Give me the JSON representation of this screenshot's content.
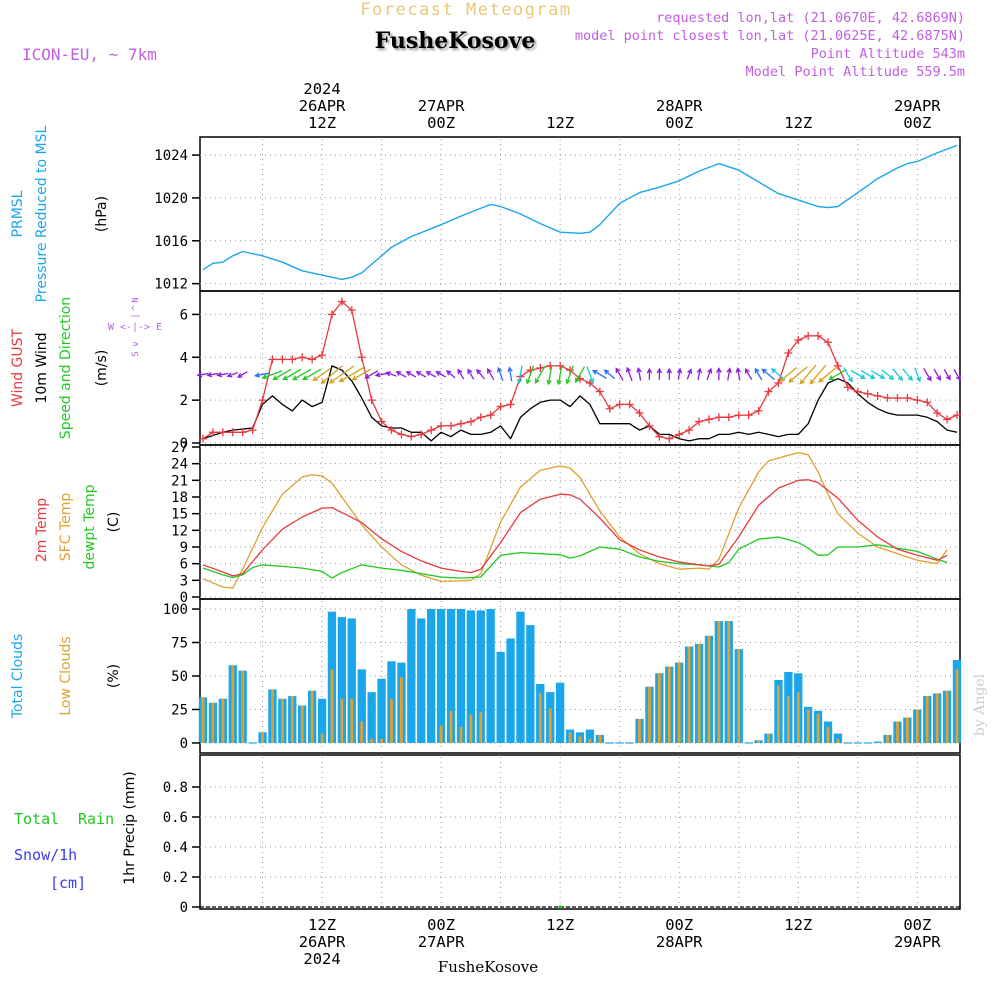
{
  "header": {
    "product_title": "Forecast Meteogram",
    "location": "FusheKosove",
    "model": "ICON-EU, ~ 7km",
    "requested": "requested lon,lat (21.0670E, 42.6869N)",
    "closest": "model point closest lon,lat (21.0625E, 42.6875N)",
    "point_altitude": "Point Altitude 543m",
    "model_altitude": "Model Point Altitude 559.5m",
    "footer_location": "FusheKosove",
    "credit": "by Angel"
  },
  "colors": {
    "pressure": "#1aa6ea",
    "gust": "#e8393f",
    "wind": "#000000",
    "arrow_purple": "#8a1ee0",
    "arrow_green": "#22c822",
    "arrow_cyan": "#18c8d8",
    "arrow_blue": "#2a6ef0",
    "arrow_gold": "#d4a020",
    "temp": "#e8393f",
    "sfc": "#e0a030",
    "dew": "#22c822",
    "total_clouds": "#1aa6ea",
    "low_clouds": "#e0a030",
    "rain": "#22c822",
    "snow": "#3a3af0",
    "title_gold": "#e0b040",
    "meta_purple": "#c060e0"
  },
  "time_axis": {
    "top_labels": [
      {
        "lines": [
          "2024",
          "26APR",
          "12Z"
        ],
        "hour": 12
      },
      {
        "lines": [
          "27APR",
          "00Z"
        ],
        "hour": 24
      },
      {
        "lines": [
          "12Z"
        ],
        "hour": 36
      },
      {
        "lines": [
          "28APR",
          "00Z"
        ],
        "hour": 48
      },
      {
        "lines": [
          "12Z"
        ],
        "hour": 60
      },
      {
        "lines": [
          "29APR",
          "00Z"
        ],
        "hour": 72
      }
    ],
    "bottom_labels": [
      {
        "lines": [
          "12Z",
          "26APR",
          "2024"
        ],
        "hour": 12
      },
      {
        "lines": [
          "00Z",
          "27APR"
        ],
        "hour": 24
      },
      {
        "lines": [
          "12Z"
        ],
        "hour": 36
      },
      {
        "lines": [
          "00Z",
          "28APR"
        ],
        "hour": 48
      },
      {
        "lines": [
          "12Z"
        ],
        "hour": 60
      },
      {
        "lines": [
          "00Z",
          "29APR"
        ],
        "hour": 72
      }
    ],
    "start_hour": 0,
    "end_hour": 76,
    "step_hours": 1
  },
  "panels": {
    "pressure": {
      "label_lines": [
        "PRMSL",
        "Pressure Reduced to MSL"
      ],
      "unit": "(hPa)",
      "ylim": [
        1011.5,
        1025.5
      ],
      "ticks": [
        1012,
        1016,
        1020,
        1024
      ]
    },
    "wind": {
      "label_gust": "Wind GUST",
      "label_wind": "10m Wind",
      "label_dir": "Speed and Direction",
      "unit": "(m/s)",
      "compass_ns": [
        "N",
        "^",
        "|",
        "v",
        "S"
      ],
      "compass_we": "W <-|-> E",
      "ylim": [
        0,
        7
      ],
      "ticks": [
        0,
        2,
        4,
        6
      ]
    },
    "temperature": {
      "label_temp": "2m Temp",
      "label_sfc": "SFC Temp",
      "label_dew": "dewpt Temp",
      "unit": "(C)",
      "ylim": [
        0,
        27
      ],
      "ticks": [
        0,
        3,
        6,
        9,
        12,
        15,
        18,
        21,
        24,
        27
      ]
    },
    "clouds": {
      "label_total": "Total Clouds",
      "label_low": "Low Clouds",
      "unit": "(%)",
      "ylim": [
        -6,
        106
      ],
      "ticks": [
        0,
        25,
        50,
        75,
        100
      ]
    },
    "precip": {
      "label_rain_a": "Total",
      "label_rain_b": "Rain",
      "label_snow_a": "Snow/1h",
      "label_snow_b": "[cm]",
      "unit": "1hr Precip (mm)",
      "ylim": [
        0,
        1
      ],
      "ticks": [
        0,
        0.2,
        0.4,
        0.6,
        0.8
      ],
      "tick_labels": [
        "0",
        "0.2",
        "0.4",
        "0.6",
        "0.8"
      ]
    }
  },
  "chart_data": {
    "type": "line",
    "title": "Forecast Meteogram FusheKosove",
    "x_units": "hours since 26APR 00Z",
    "pressure": {
      "x": [
        0,
        1,
        2,
        3,
        4,
        6,
        8,
        10,
        12,
        14,
        15,
        16,
        18,
        19,
        21,
        24,
        26,
        29,
        30,
        32,
        34,
        36,
        38,
        39,
        40,
        42,
        44,
        46,
        48,
        50,
        52,
        54,
        56,
        58,
        60,
        62,
        63,
        64,
        66,
        68,
        70,
        71,
        72,
        74,
        76
      ],
      "values": [
        1013.3,
        1013.9,
        1014.0,
        1014.6,
        1015.0,
        1014.6,
        1014.0,
        1013.2,
        1012.8,
        1012.4,
        1012.6,
        1013.0,
        1014.6,
        1015.4,
        1016.4,
        1017.5,
        1018.3,
        1019.4,
        1019.2,
        1018.5,
        1017.6,
        1016.8,
        1016.7,
        1016.8,
        1017.5,
        1019.5,
        1020.5,
        1021.0,
        1021.6,
        1022.5,
        1023.2,
        1022.6,
        1021.5,
        1020.4,
        1019.8,
        1019.2,
        1019.1,
        1019.2,
        1020.5,
        1021.8,
        1022.8,
        1023.2,
        1023.4,
        1024.2,
        1024.9
      ]
    },
    "wind_speed": {
      "x": [
        0,
        2,
        3,
        5,
        6,
        7,
        8,
        9,
        10,
        11,
        12,
        13,
        14,
        15,
        16,
        17,
        18,
        19,
        20,
        21,
        22,
        23,
        24,
        25,
        26,
        27,
        28,
        29,
        30,
        31,
        32,
        33,
        34,
        35,
        36,
        37,
        38,
        39,
        40,
        41,
        42,
        43,
        44,
        45,
        46,
        47,
        48,
        49,
        50,
        51,
        52,
        53,
        54,
        55,
        56,
        57,
        58,
        59,
        60,
        61,
        62,
        63,
        64,
        65,
        66,
        67,
        68,
        69,
        70,
        71,
        72,
        73,
        74,
        75,
        76
      ],
      "values": [
        0.2,
        0.5,
        0.6,
        0.7,
        1.8,
        2.2,
        1.8,
        1.5,
        2.0,
        1.7,
        1.9,
        3.6,
        3.4,
        2.9,
        2.1,
        1.2,
        0.8,
        0.7,
        0.7,
        0.5,
        0.5,
        0.1,
        0.5,
        0.3,
        0.6,
        0.4,
        0.4,
        0.5,
        0.8,
        0.2,
        1.2,
        1.6,
        1.9,
        2.0,
        2.0,
        1.7,
        2.2,
        1.8,
        0.9,
        0.9,
        0.9,
        0.9,
        0.6,
        0.8,
        0.4,
        0.4,
        0.2,
        0.1,
        0.2,
        0.2,
        0.4,
        0.4,
        0.5,
        0.4,
        0.5,
        0.4,
        0.3,
        0.4,
        0.4,
        0.9,
        2.0,
        2.8,
        3.0,
        2.8,
        2.3,
        1.9,
        1.6,
        1.4,
        1.3,
        1.3,
        1.3,
        1.2,
        1.0,
        0.6,
        0.5
      ]
    },
    "wind_gust": {
      "x": [
        0,
        1,
        2,
        3,
        4,
        5,
        6,
        7,
        8,
        9,
        10,
        11,
        12,
        13,
        14,
        15,
        16,
        17,
        18,
        19,
        20,
        21,
        22,
        23,
        24,
        25,
        26,
        27,
        28,
        29,
        30,
        31,
        32,
        33,
        34,
        35,
        36,
        37,
        38,
        39,
        40,
        41,
        42,
        43,
        44,
        45,
        46,
        47,
        48,
        49,
        50,
        51,
        52,
        53,
        54,
        55,
        56,
        57,
        58,
        59,
        60,
        61,
        62,
        63,
        64,
        65,
        66,
        67,
        68,
        69,
        70,
        71,
        72,
        73,
        74,
        75,
        76
      ],
      "values": [
        0.2,
        0.5,
        0.5,
        0.5,
        0.5,
        0.6,
        2.0,
        3.9,
        3.9,
        3.9,
        4.0,
        3.9,
        4.1,
        6.0,
        6.6,
        6.2,
        4.0,
        2.0,
        1.0,
        0.6,
        0.4,
        0.3,
        0.4,
        0.6,
        0.8,
        0.8,
        0.9,
        1.0,
        1.2,
        1.3,
        1.7,
        1.8,
        3.1,
        3.4,
        3.5,
        3.6,
        3.6,
        3.4,
        3.0,
        2.8,
        2.4,
        1.6,
        1.8,
        1.8,
        1.4,
        0.8,
        0.3,
        0.2,
        0.4,
        0.6,
        1.0,
        1.1,
        1.2,
        1.2,
        1.3,
        1.3,
        1.5,
        2.4,
        2.8,
        4.2,
        4.8,
        5.0,
        5.0,
        4.7,
        3.6,
        2.6,
        2.4,
        2.3,
        2.2,
        2.1,
        2.1,
        2.1,
        2.0,
        1.9,
        1.4,
        1.1,
        1.3
      ]
    },
    "wind_arrows": {
      "x": [
        0,
        1,
        2,
        3,
        4,
        6,
        7,
        8,
        9,
        10,
        11,
        12,
        13,
        14,
        15,
        16,
        17,
        18,
        19,
        20,
        21,
        22,
        23,
        24,
        25,
        26,
        27,
        28,
        29,
        30,
        31,
        32,
        33,
        34,
        35,
        36,
        37,
        38,
        39,
        40,
        41,
        42,
        43,
        44,
        45,
        46,
        47,
        48,
        49,
        50,
        51,
        52,
        53,
        54,
        55,
        56,
        57,
        58,
        59,
        60,
        61,
        62,
        63,
        64,
        65,
        66,
        67,
        68,
        69,
        70,
        71,
        72,
        73,
        74,
        75,
        76
      ],
      "dir_deg": [
        80,
        80,
        80,
        70,
        60,
        80,
        70,
        60,
        60,
        60,
        60,
        55,
        50,
        55,
        60,
        60,
        60,
        80,
        110,
        120,
        120,
        120,
        120,
        120,
        130,
        150,
        150,
        140,
        150,
        160,
        170,
        10,
        20,
        30,
        10,
        10,
        20,
        30,
        340,
        120,
        130,
        150,
        160,
        170,
        180,
        180,
        180,
        190,
        200,
        190,
        200,
        180,
        190,
        170,
        150,
        150,
        130,
        130,
        50,
        50,
        40,
        40,
        50,
        60,
        330,
        300,
        300,
        300,
        310,
        320,
        320,
        340,
        330,
        330,
        330,
        330
      ],
      "color": [
        "purple",
        "purple",
        "purple",
        "purple",
        "purple",
        "blue",
        "green",
        "green",
        "green",
        "green",
        "green",
        "gold",
        "gold",
        "gold",
        "gold",
        "gold",
        "purple",
        "purple",
        "purple",
        "purple",
        "purple",
        "purple",
        "purple",
        "purple",
        "purple",
        "purple",
        "purple",
        "purple",
        "purple",
        "blue",
        "blue",
        "cyan",
        "green",
        "green",
        "green",
        "green",
        "green",
        "green",
        "cyan",
        "blue",
        "blue",
        "purple",
        "purple",
        "purple",
        "purple",
        "purple",
        "purple",
        "purple",
        "purple",
        "purple",
        "purple",
        "purple",
        "purple",
        "purple",
        "purple",
        "blue",
        "blue",
        "cyan",
        "gold",
        "gold",
        "gold",
        "gold",
        "gold",
        "green",
        "cyan",
        "cyan",
        "cyan",
        "cyan",
        "cyan",
        "cyan",
        "cyan",
        "cyan",
        "purple",
        "purple",
        "purple",
        "purple"
      ]
    },
    "temp_2m": {
      "x": [
        0,
        2,
        3,
        4,
        6,
        8,
        10,
        12,
        13,
        14,
        16,
        18,
        20,
        22,
        24,
        26,
        27,
        28,
        30,
        32,
        34,
        36,
        37,
        38,
        40,
        42,
        44,
        46,
        48,
        50,
        51,
        52,
        54,
        56,
        58,
        60,
        61,
        62,
        64,
        66,
        68,
        70,
        72,
        74,
        75
      ],
      "values": [
        5.8,
        4.5,
        3.8,
        4.2,
        8.5,
        12.2,
        14.4,
        16.0,
        16.1,
        15.2,
        13.4,
        10.5,
        8.2,
        6.5,
        5.2,
        4.6,
        4.4,
        5.0,
        9.8,
        15.2,
        17.6,
        18.5,
        18.4,
        17.6,
        14.2,
        10.3,
        8.5,
        7.2,
        6.3,
        5.8,
        5.6,
        5.9,
        10.8,
        16.5,
        19.6,
        21.0,
        21.1,
        20.6,
        17.8,
        13.8,
        10.8,
        8.6,
        7.5,
        6.6,
        7.5
      ]
    },
    "temp_sfc": {
      "x": [
        0,
        2,
        3,
        4,
        6,
        8,
        10,
        11,
        12,
        13,
        14,
        16,
        18,
        20,
        22,
        24,
        26,
        27,
        28,
        30,
        32,
        34,
        35,
        36,
        37,
        38,
        40,
        42,
        44,
        46,
        48,
        50,
        51,
        52,
        54,
        56,
        57,
        58,
        59,
        60,
        61,
        62,
        63,
        64,
        66,
        68,
        70,
        72,
        74,
        75
      ],
      "values": [
        3.3,
        1.8,
        1.6,
        5.0,
        12.5,
        18.5,
        21.6,
        22.0,
        21.8,
        20.5,
        18.0,
        13.0,
        9.0,
        5.8,
        3.9,
        2.8,
        2.9,
        3.0,
        4.2,
        13.5,
        19.8,
        22.8,
        23.2,
        23.6,
        23.2,
        21.5,
        15.5,
        10.8,
        7.8,
        6.0,
        5.0,
        5.2,
        5.0,
        6.8,
        16.0,
        22.5,
        24.5,
        25.0,
        25.5,
        26.0,
        25.6,
        22.5,
        18.5,
        15.0,
        11.5,
        9.0,
        7.8,
        6.6,
        6.0,
        8.5
      ]
    },
    "dewpoint": {
      "x": [
        0,
        2,
        3,
        4,
        5,
        6,
        8,
        10,
        12,
        13,
        14,
        16,
        18,
        20,
        22,
        24,
        26,
        28,
        30,
        32,
        34,
        36,
        37,
        38,
        40,
        42,
        44,
        46,
        48,
        50,
        52,
        53,
        54,
        56,
        58,
        60,
        61,
        62,
        63,
        64,
        66,
        68,
        70,
        72,
        74,
        75
      ],
      "values": [
        5.2,
        4.0,
        3.5,
        4.0,
        5.3,
        5.8,
        5.5,
        5.2,
        4.6,
        3.4,
        4.4,
        5.8,
        5.2,
        4.8,
        4.2,
        3.6,
        3.4,
        3.6,
        7.5,
        8.0,
        7.8,
        7.6,
        7.0,
        7.4,
        9.0,
        8.6,
        7.2,
        6.4,
        6.0,
        5.8,
        5.4,
        6.2,
        8.6,
        10.4,
        10.8,
        9.8,
        8.8,
        7.5,
        7.6,
        9.0,
        9.0,
        9.4,
        8.8,
        8.2,
        6.8,
        6.2
      ]
    },
    "clouds": {
      "x": [
        0,
        1,
        2,
        3,
        4,
        5,
        6,
        7,
        8,
        9,
        10,
        11,
        12,
        13,
        14,
        15,
        16,
        17,
        18,
        19,
        20,
        21,
        22,
        23,
        24,
        25,
        26,
        27,
        28,
        29,
        30,
        31,
        32,
        33,
        34,
        35,
        36,
        37,
        38,
        39,
        40,
        41,
        42,
        43,
        44,
        45,
        46,
        47,
        48,
        49,
        50,
        51,
        52,
        53,
        54,
        55,
        56,
        57,
        58,
        59,
        60,
        61,
        62,
        63,
        64,
        65,
        66,
        67,
        68,
        69,
        70,
        71,
        72,
        73,
        74,
        75,
        76
      ],
      "total": [
        34,
        30,
        33,
        58,
        54,
        0,
        8,
        40,
        33,
        35,
        28,
        39,
        33,
        98,
        94,
        93,
        55,
        38,
        48,
        61,
        60,
        100,
        93,
        100,
        100,
        100,
        100,
        99,
        99,
        100,
        68,
        78,
        98,
        88,
        44,
        38,
        45,
        10,
        8,
        10,
        6,
        0,
        0,
        0,
        18,
        42,
        52,
        57,
        60,
        72,
        74,
        80,
        91,
        91,
        70,
        0,
        2,
        7,
        47,
        53,
        52,
        27,
        24,
        16,
        7,
        0,
        0,
        0,
        1,
        6,
        16,
        19,
        25,
        35,
        37,
        39,
        62
      ],
      "low": [
        34,
        30,
        33,
        58,
        54,
        0,
        8,
        40,
        33,
        35,
        28,
        39,
        7,
        55,
        33,
        33,
        16,
        3,
        3,
        33,
        49,
        0,
        0,
        0,
        13,
        24,
        12,
        21,
        23,
        0,
        0,
        0,
        0,
        0,
        37,
        26,
        0,
        8,
        5,
        3,
        6,
        0,
        0,
        0,
        18,
        42,
        52,
        57,
        60,
        72,
        74,
        80,
        91,
        91,
        70,
        0,
        2,
        7,
        43,
        35,
        38,
        25,
        22,
        12,
        3,
        0,
        0,
        0,
        0,
        6,
        16,
        19,
        25,
        35,
        37,
        39,
        55
      ]
    },
    "precip": {
      "x": [
        36
      ],
      "rain": [
        0.0
      ],
      "snow": [
        0.0
      ]
    }
  }
}
